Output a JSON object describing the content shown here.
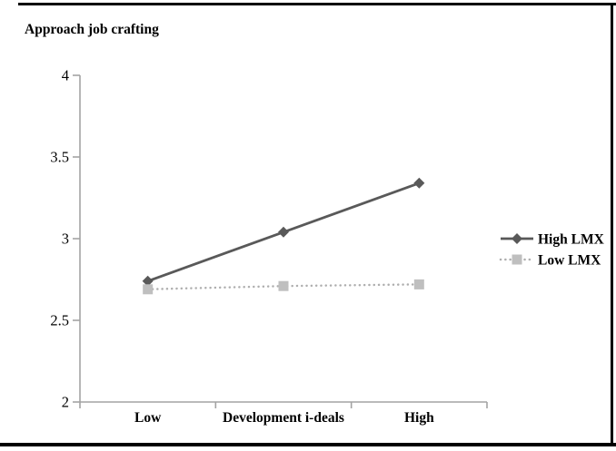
{
  "figure": {
    "title": "Approach job crafting"
  },
  "chart_data": {
    "type": "line",
    "title": "Approach job crafting",
    "categories": [
      "Low",
      "Development i-deals",
      "High"
    ],
    "series": [
      {
        "name": "High LMX",
        "values": [
          2.74,
          3.04,
          3.34
        ],
        "line_color": "#595959",
        "marker_color": "#595959",
        "marker": "diamond",
        "line_style": "solid"
      },
      {
        "name": "Low LMX",
        "values": [
          2.69,
          2.71,
          2.72
        ],
        "line_color": "#aeaeae",
        "marker_color": "#bfbfbf",
        "marker": "square",
        "line_style": "dotted"
      }
    ],
    "xlabel": "",
    "ylabel": "",
    "ylim": [
      2,
      4
    ],
    "yticks": [
      4,
      3.5,
      3,
      2.5,
      2
    ],
    "ytick_labels": [
      "4",
      "3.5",
      "3",
      "2.5",
      "2"
    ],
    "legend": [
      "High LMX",
      "Low LMX"
    ],
    "legend_position": "right",
    "grid": false,
    "axis_color": "#a3a3a3",
    "text_color": "#000000"
  }
}
